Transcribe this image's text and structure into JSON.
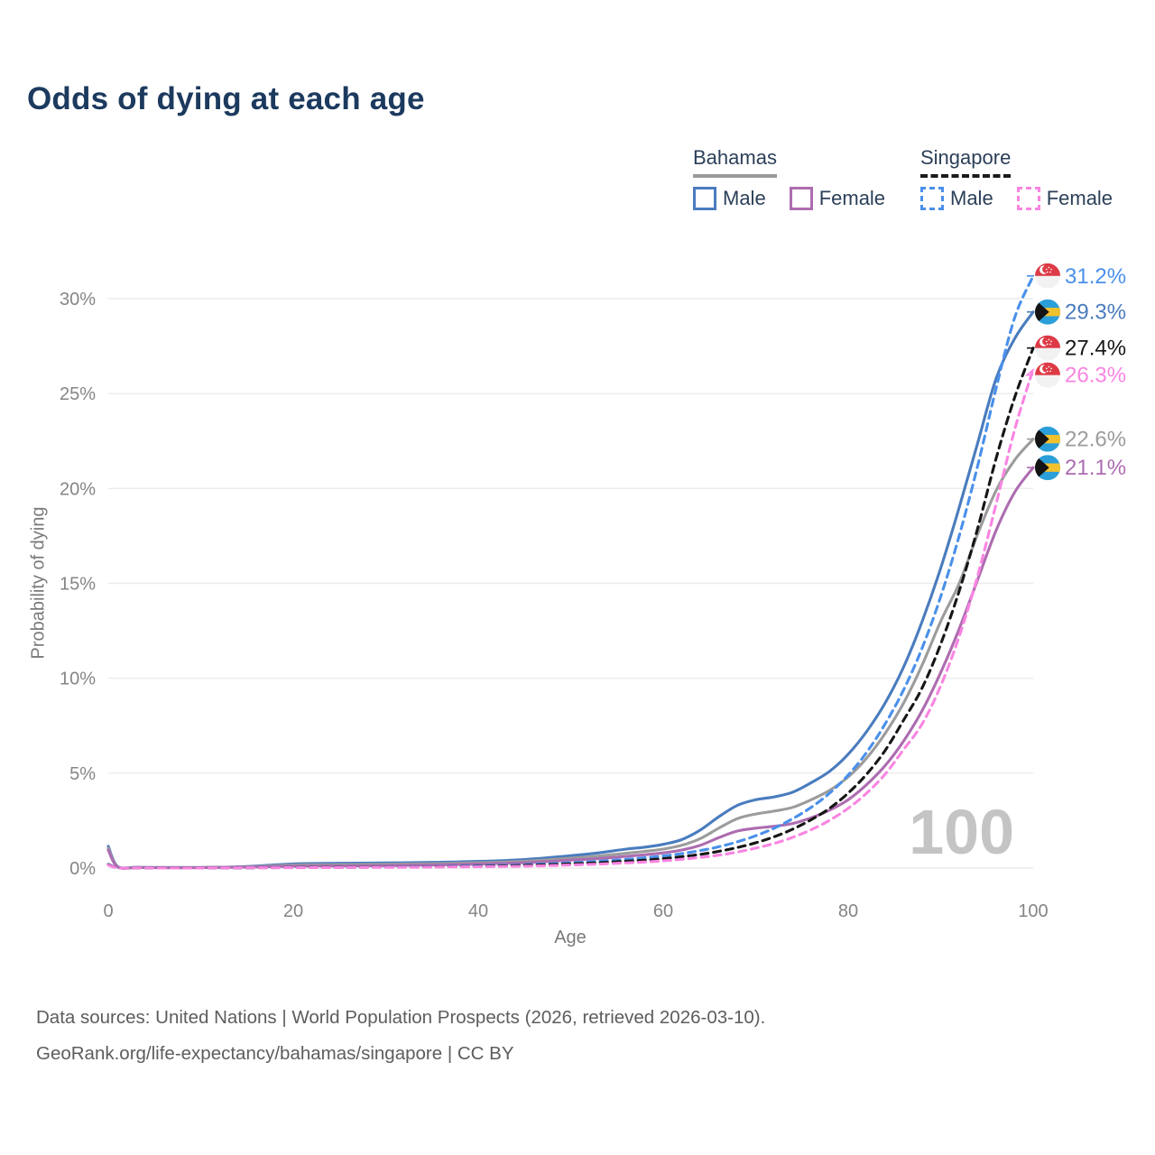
{
  "header": {
    "title": "Odds of dying at each age"
  },
  "legend": {
    "groups": [
      {
        "id": "bahamas",
        "label": "Bahamas",
        "underline_style": "solid",
        "underline_color": "#9a9a9a",
        "items": [
          {
            "label": "Male",
            "color": "#4a7cbe",
            "dashed": false
          },
          {
            "label": "Female",
            "color": "#ad6cb0",
            "dashed": false
          }
        ]
      },
      {
        "id": "singapore",
        "label": "Singapore",
        "underline_style": "dashed",
        "underline_color": "#1a1a1a",
        "items": [
          {
            "label": "Male",
            "color": "#4a90ea",
            "dashed": true
          },
          {
            "label": "Female",
            "color": "#f985e1",
            "dashed": true
          }
        ]
      }
    ]
  },
  "chart_data": {
    "type": "line",
    "title": "Odds of dying at each age",
    "xlabel": "Age",
    "ylabel": "Probability of dying",
    "xlim": [
      0,
      100
    ],
    "ylim": [
      0,
      31.5
    ],
    "x_ticks": [
      0,
      20,
      40,
      60,
      80,
      100
    ],
    "y_ticks": [
      {
        "v": 0,
        "label": "0%"
      },
      {
        "v": 5,
        "label": "5%"
      },
      {
        "v": 10,
        "label": "10%"
      },
      {
        "v": 15,
        "label": "15%"
      },
      {
        "v": 20,
        "label": "20%"
      },
      {
        "v": 25,
        "label": "25%"
      },
      {
        "v": 30,
        "label": "30%"
      }
    ],
    "grid": "horizontal",
    "legend_position": "top-right",
    "age_watermark": "100",
    "ages": [
      0,
      1,
      3,
      5,
      10,
      15,
      20,
      25,
      30,
      35,
      40,
      45,
      50,
      53,
      56,
      58,
      60,
      62,
      64,
      66,
      68,
      70,
      72,
      74,
      76,
      78,
      80,
      82,
      84,
      86,
      88,
      90,
      92,
      94,
      96,
      98,
      100
    ],
    "series": [
      {
        "name": "Bahamas Male",
        "country": "bahamas",
        "sex": "male",
        "color": "#4a7cbe",
        "dashed": false,
        "end_label": "29.3%",
        "values": [
          1.15,
          0.08,
          0.04,
          0.03,
          0.03,
          0.08,
          0.22,
          0.25,
          0.27,
          0.3,
          0.35,
          0.45,
          0.65,
          0.8,
          1.0,
          1.1,
          1.25,
          1.5,
          2.0,
          2.7,
          3.3,
          3.6,
          3.75,
          4.0,
          4.5,
          5.1,
          6.0,
          7.2,
          8.7,
          10.6,
          13.0,
          15.8,
          19.0,
          22.4,
          25.8,
          27.9,
          29.3
        ]
      },
      {
        "name": "Bahamas (both sexes)",
        "country": "bahamas",
        "sex": "all",
        "color": "#9c9c9c",
        "dashed": false,
        "end_label": "22.6%",
        "values": [
          1.05,
          0.07,
          0.035,
          0.03,
          0.03,
          0.06,
          0.16,
          0.18,
          0.2,
          0.23,
          0.28,
          0.36,
          0.52,
          0.63,
          0.78,
          0.88,
          1.0,
          1.2,
          1.55,
          2.1,
          2.6,
          2.85,
          3.0,
          3.2,
          3.6,
          4.1,
          4.8,
          5.8,
          7.1,
          8.7,
          10.7,
          13.0,
          15.0,
          17.6,
          19.9,
          21.5,
          22.6
        ]
      },
      {
        "name": "Bahamas Female",
        "country": "bahamas",
        "sex": "female",
        "color": "#ad6cb0",
        "dashed": false,
        "end_label": "21.1%",
        "values": [
          0.95,
          0.06,
          0.03,
          0.02,
          0.02,
          0.05,
          0.1,
          0.11,
          0.13,
          0.16,
          0.21,
          0.28,
          0.42,
          0.5,
          0.62,
          0.7,
          0.8,
          0.95,
          1.2,
          1.6,
          1.95,
          2.1,
          2.2,
          2.35,
          2.65,
          3.05,
          3.6,
          4.4,
          5.4,
          6.7,
          8.3,
          10.3,
          12.6,
          15.2,
          17.8,
          19.8,
          21.1
        ]
      },
      {
        "name": "Singapore Male",
        "country": "singapore",
        "sex": "male",
        "color": "#4a90ea",
        "dashed": true,
        "end_label": "31.2%",
        "values": [
          0.2,
          0.02,
          0.012,
          0.01,
          0.01,
          0.02,
          0.04,
          0.05,
          0.06,
          0.08,
          0.12,
          0.18,
          0.28,
          0.36,
          0.46,
          0.54,
          0.64,
          0.76,
          0.92,
          1.12,
          1.38,
          1.7,
          2.1,
          2.6,
          3.2,
          3.95,
          4.9,
          6.1,
          7.6,
          9.4,
          11.6,
          14.3,
          17.5,
          21.2,
          25.3,
          29.0,
          31.2
        ]
      },
      {
        "name": "Singapore (both sexes)",
        "country": "singapore",
        "sex": "all",
        "color": "#161616",
        "dashed": true,
        "end_label": "27.4%",
        "values": [
          0.18,
          0.016,
          0.01,
          0.008,
          0.008,
          0.015,
          0.03,
          0.04,
          0.05,
          0.065,
          0.09,
          0.14,
          0.22,
          0.28,
          0.36,
          0.42,
          0.5,
          0.6,
          0.72,
          0.88,
          1.08,
          1.33,
          1.65,
          2.05,
          2.55,
          3.15,
          3.95,
          4.95,
          6.2,
          7.8,
          9.5,
          11.8,
          14.6,
          17.9,
          21.6,
          24.8,
          27.4
        ]
      },
      {
        "name": "Singapore Female",
        "country": "singapore",
        "sex": "female",
        "color": "#f985e1",
        "dashed": true,
        "end_label": "26.3%",
        "values": [
          0.16,
          0.012,
          0.008,
          0.007,
          0.007,
          0.012,
          0.02,
          0.03,
          0.04,
          0.05,
          0.07,
          0.1,
          0.16,
          0.21,
          0.27,
          0.32,
          0.38,
          0.46,
          0.56,
          0.68,
          0.84,
          1.05,
          1.3,
          1.62,
          2.02,
          2.52,
          3.15,
          3.95,
          4.95,
          6.25,
          7.6,
          9.6,
          12.2,
          15.4,
          19.2,
          23.1,
          26.3
        ]
      }
    ],
    "flag_colors": {
      "bahamas_blue": "#2b9fd9",
      "bahamas_gold": "#f2c12e",
      "bahamas_black": "#141414",
      "singapore_red": "#dd3a45",
      "singapore_white": "#f2f2f2"
    }
  },
  "footer": {
    "line1": "Data sources: United Nations | World Population Prospects (2026, retrieved 2026-03-10).",
    "line2": "GeoRank.org/life-expectancy/bahamas/singapore | CC BY"
  }
}
